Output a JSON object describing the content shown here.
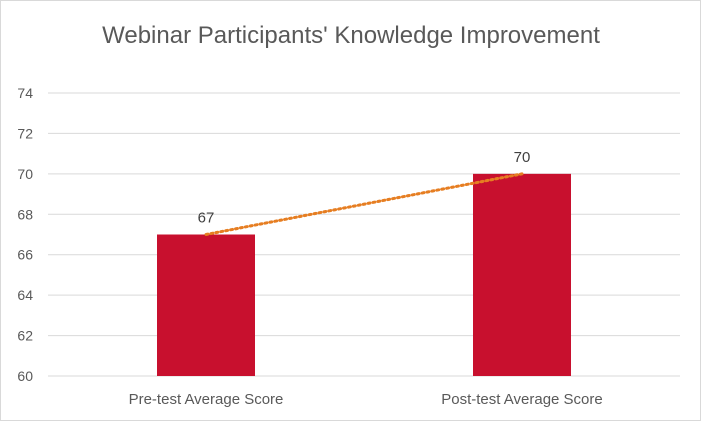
{
  "chart_data": {
    "type": "bar",
    "title": "Webinar Participants' Knowledge Improvement",
    "categories": [
      "Pre-test Average Score",
      "Post-test Average Score"
    ],
    "values": [
      67,
      70
    ],
    "data_labels": [
      "67",
      "70"
    ],
    "ylim": [
      60,
      74
    ],
    "yticks": [
      60,
      62,
      64,
      66,
      68,
      70,
      72,
      74
    ],
    "grid": true,
    "trendline": true,
    "bar_color": "#c8102e",
    "trendline_color": "#e67e22",
    "grid_color": "#d9d9d9",
    "text_color": "#404040"
  }
}
